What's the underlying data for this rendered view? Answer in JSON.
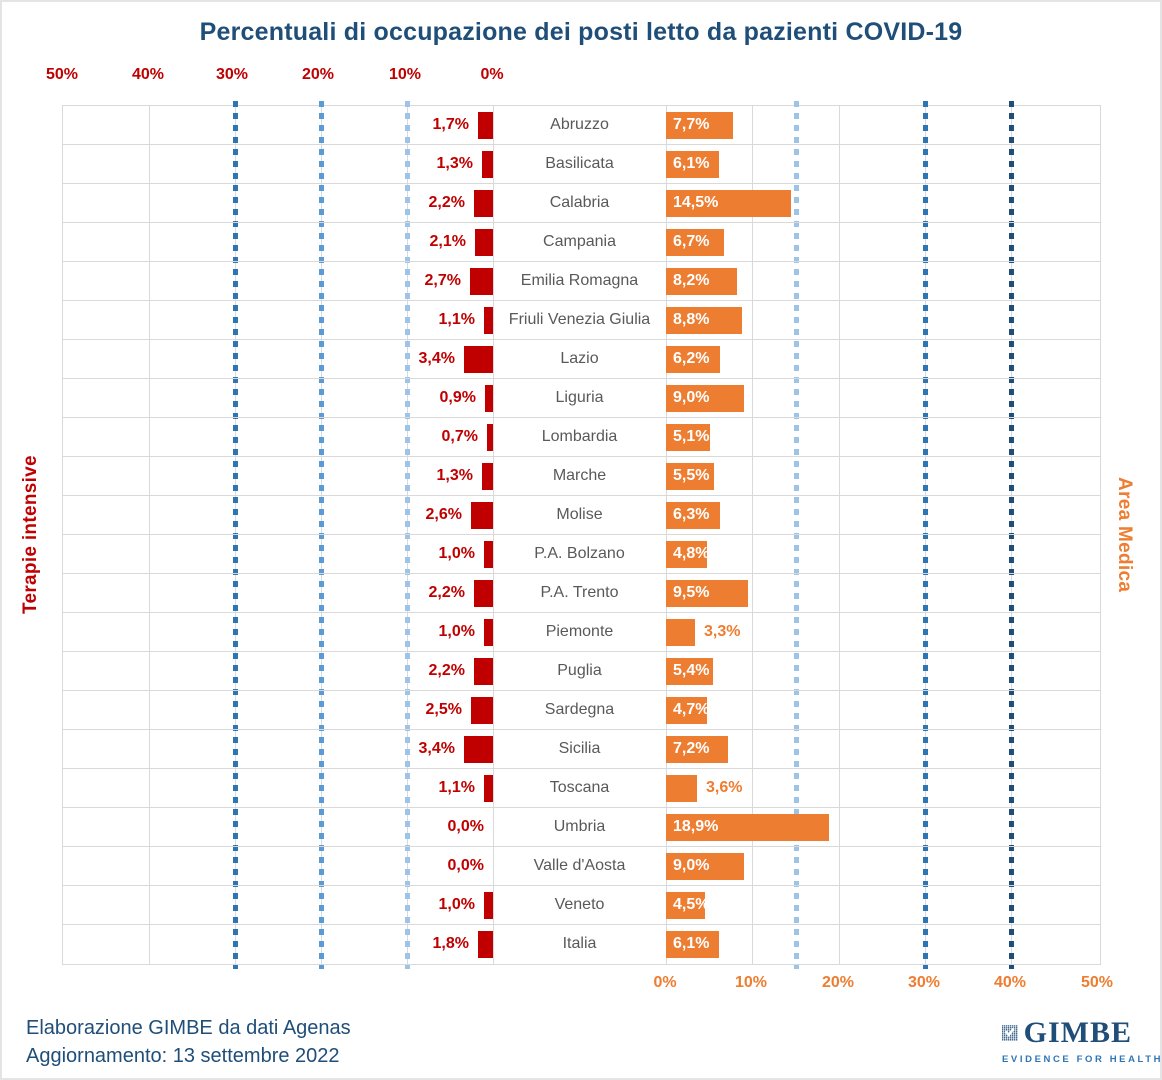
{
  "title": "Percentuali di occupazione dei posti letto da pazienti COVID-19",
  "left_axis": {
    "label": "Terapie intensive",
    "ticks": [
      "50%",
      "40%",
      "30%",
      "20%",
      "10%",
      "0%"
    ],
    "color": "#C00000",
    "threshold_lines_percent": [
      10,
      20,
      30
    ]
  },
  "right_axis": {
    "label": "Area Medica",
    "ticks": [
      "0%",
      "10%",
      "20%",
      "30%",
      "40%",
      "50%"
    ],
    "color": "#ED7D31",
    "threshold_lines_percent": [
      15,
      30,
      40
    ]
  },
  "colors": {
    "red_bar": "#C00000",
    "orange_bar": "#ED7D31",
    "title_navy": "#1F4E79",
    "region_text": "#595959",
    "gridline": "#D9D9D9",
    "dash_light": "#9DC3E6",
    "dash_mid": "#5B9BD5",
    "dash_dark": "#2E75B6",
    "dash_darkest": "#1F4E79"
  },
  "chart_data": {
    "type": "bar",
    "orientation": "horizontal-diverging",
    "title": "Percentuali di occupazione dei posti letto da pazienti COVID-19",
    "categories": [
      "Abruzzo",
      "Basilicata",
      "Calabria",
      "Campania",
      "Emilia Romagna",
      "Friuli Venezia Giulia",
      "Lazio",
      "Liguria",
      "Lombardia",
      "Marche",
      "Molise",
      "P.A. Bolzano",
      "P.A. Trento",
      "Piemonte",
      "Puglia",
      "Sardegna",
      "Sicilia",
      "Toscana",
      "Umbria",
      "Valle d'Aosta",
      "Veneto",
      "Italia"
    ],
    "series": [
      {
        "name": "Terapie intensive",
        "side": "left",
        "color": "#C00000",
        "unit": "%",
        "values": [
          1.7,
          1.3,
          2.2,
          2.1,
          2.7,
          1.1,
          3.4,
          0.9,
          0.7,
          1.3,
          2.6,
          1.0,
          2.2,
          1.0,
          2.2,
          2.5,
          3.4,
          1.1,
          0.0,
          0.0,
          1.0,
          1.8
        ]
      },
      {
        "name": "Area Medica",
        "side": "right",
        "color": "#ED7D31",
        "unit": "%",
        "values": [
          7.7,
          6.1,
          14.5,
          6.7,
          8.2,
          8.8,
          6.2,
          9.0,
          5.1,
          5.5,
          6.3,
          4.8,
          9.5,
          3.3,
          5.4,
          4.7,
          7.2,
          3.6,
          18.9,
          9.0,
          4.5,
          6.1
        ]
      }
    ],
    "x_range_percent": [
      0,
      50
    ],
    "tick_interval_percent": 10,
    "threshold_lines": {
      "left_terapie_intensive": [
        10,
        20,
        30
      ],
      "right_area_medica": [
        15,
        30,
        40
      ]
    },
    "grid": true,
    "legend": "none"
  },
  "rows": [
    {
      "region": "Abruzzo",
      "ti": 1.7,
      "ti_label": "1,7%",
      "am": 7.7,
      "am_label": "7,7%",
      "am_inside": true
    },
    {
      "region": "Basilicata",
      "ti": 1.3,
      "ti_label": "1,3%",
      "am": 6.1,
      "am_label": "6,1%",
      "am_inside": true
    },
    {
      "region": "Calabria",
      "ti": 2.2,
      "ti_label": "2,2%",
      "am": 14.5,
      "am_label": "14,5%",
      "am_inside": true
    },
    {
      "region": "Campania",
      "ti": 2.1,
      "ti_label": "2,1%",
      "am": 6.7,
      "am_label": "6,7%",
      "am_inside": true
    },
    {
      "region": "Emilia Romagna",
      "ti": 2.7,
      "ti_label": "2,7%",
      "am": 8.2,
      "am_label": "8,2%",
      "am_inside": true
    },
    {
      "region": "Friuli Venezia Giulia",
      "ti": 1.1,
      "ti_label": "1,1%",
      "am": 8.8,
      "am_label": "8,8%",
      "am_inside": true
    },
    {
      "region": "Lazio",
      "ti": 3.4,
      "ti_label": "3,4%",
      "am": 6.2,
      "am_label": "6,2%",
      "am_inside": true
    },
    {
      "region": "Liguria",
      "ti": 0.9,
      "ti_label": "0,9%",
      "am": 9.0,
      "am_label": "9,0%",
      "am_inside": true
    },
    {
      "region": "Lombardia",
      "ti": 0.7,
      "ti_label": "0,7%",
      "am": 5.1,
      "am_label": "5,1%",
      "am_inside": true
    },
    {
      "region": "Marche",
      "ti": 1.3,
      "ti_label": "1,3%",
      "am": 5.5,
      "am_label": "5,5%",
      "am_inside": true
    },
    {
      "region": "Molise",
      "ti": 2.6,
      "ti_label": "2,6%",
      "am": 6.3,
      "am_label": "6,3%",
      "am_inside": true
    },
    {
      "region": "P.A. Bolzano",
      "ti": 1.0,
      "ti_label": "1,0%",
      "am": 4.8,
      "am_label": "4,8%",
      "am_inside": true
    },
    {
      "region": "P.A. Trento",
      "ti": 2.2,
      "ti_label": "2,2%",
      "am": 9.5,
      "am_label": "9,5%",
      "am_inside": true
    },
    {
      "region": "Piemonte",
      "ti": 1.0,
      "ti_label": "1,0%",
      "am": 3.3,
      "am_label": "3,3%",
      "am_inside": false
    },
    {
      "region": "Puglia",
      "ti": 2.2,
      "ti_label": "2,2%",
      "am": 5.4,
      "am_label": "5,4%",
      "am_inside": true
    },
    {
      "region": "Sardegna",
      "ti": 2.5,
      "ti_label": "2,5%",
      "am": 4.7,
      "am_label": "4,7%",
      "am_inside": true
    },
    {
      "region": "Sicilia",
      "ti": 3.4,
      "ti_label": "3,4%",
      "am": 7.2,
      "am_label": "7,2%",
      "am_inside": true
    },
    {
      "region": "Toscana",
      "ti": 1.1,
      "ti_label": "1,1%",
      "am": 3.6,
      "am_label": "3,6%",
      "am_inside": false
    },
    {
      "region": "Umbria",
      "ti": 0.0,
      "ti_label": "0,0%",
      "am": 18.9,
      "am_label": "18,9%",
      "am_inside": true
    },
    {
      "region": "Valle d'Aosta",
      "ti": 0.0,
      "ti_label": "0,0%",
      "am": 9.0,
      "am_label": "9,0%",
      "am_inside": true
    },
    {
      "region": "Veneto",
      "ti": 1.0,
      "ti_label": "1,0%",
      "am": 4.5,
      "am_label": "4,5%",
      "am_inside": true
    },
    {
      "region": "Italia",
      "ti": 1.8,
      "ti_label": "1,8%",
      "am": 6.1,
      "am_label": "6,1%",
      "am_inside": true
    }
  ],
  "footer": {
    "line1": "Elaborazione GIMBE da dati Agenas",
    "line2": "Aggiornamento: 13 settembre 2022"
  },
  "logo": {
    "wordmark": "GIMBE",
    "tagline": "EVIDENCE FOR HEALTH"
  }
}
